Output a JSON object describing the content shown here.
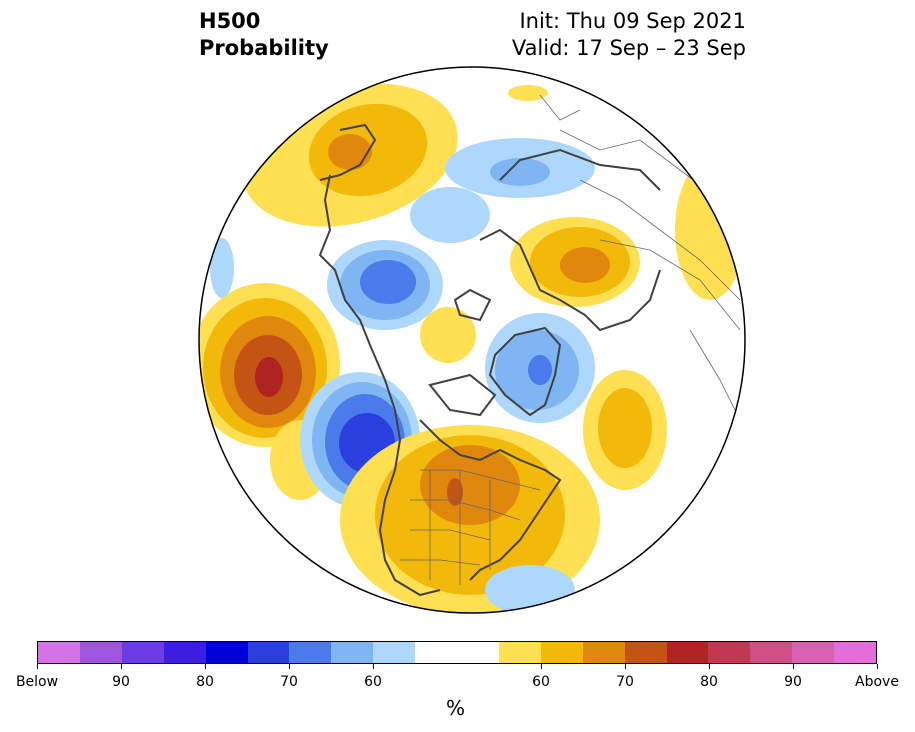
{
  "title": {
    "left_line1": "H500",
    "left_line2": "Probability",
    "right_line1": "Init: Thu 09 Sep 2021",
    "right_line2": "Valid: 17 Sep – 23 Sep"
  },
  "colorbar": {
    "unit": "%",
    "labels": [
      "Below",
      "90",
      "80",
      "70",
      "60",
      "60",
      "70",
      "80",
      "90",
      "Above"
    ],
    "colors": [
      "#d473e8",
      "#a055dd",
      "#6b3ce6",
      "#3b1ee0",
      "#0000d9",
      "#2a3fdd",
      "#4b7bea",
      "#7eb5f2",
      "#aed8fb",
      "#ffffff",
      "#fee052",
      "#f3b90a",
      "#e0870e",
      "#c45414",
      "#b02323",
      "#c43750",
      "#cf4e86",
      "#d95fb3",
      "#e46ddb"
    ]
  },
  "map_features": {
    "anomalies": [
      {
        "region": "Alaska / Bering",
        "sign": "above",
        "level": 65
      },
      {
        "region": "North Pacific",
        "sign": "above",
        "level": 80
      },
      {
        "region": "Eastern North Pacific / Gulf of Alaska",
        "sign": "below",
        "level": 75
      },
      {
        "region": "Central & Eastern United States",
        "sign": "above",
        "level": 75
      },
      {
        "region": "Greenland",
        "sign": "below",
        "level": 65
      },
      {
        "region": "North Atlantic",
        "sign": "above",
        "level": 60
      },
      {
        "region": "Western Russia",
        "sign": "above",
        "level": 70
      },
      {
        "region": "East Siberia",
        "sign": "below",
        "level": 65
      },
      {
        "region": "Arctic Ocean",
        "sign": "above",
        "level": 55
      },
      {
        "region": "Central Siberia",
        "sign": "below",
        "level": 60
      }
    ]
  }
}
